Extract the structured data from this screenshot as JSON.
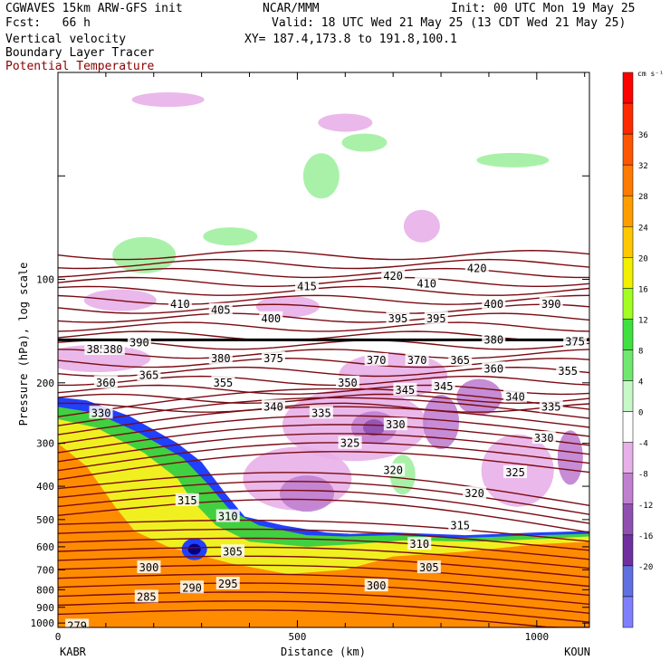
{
  "header": {
    "model": "CGWAVES 15km ARW-GFS init",
    "forecast": "Fcst:   66 h",
    "field1": "Vertical velocity",
    "field2": "Boundary Layer Tracer",
    "field3": "Potential Temperature",
    "center": "NCAR/MMM",
    "init": "Init: 00 UTC Mon 19 May 25",
    "valid": "Valid: 18 UTC Wed 21 May 25 (13 CDT Wed 21 May 25)",
    "xy": "XY= 187.4,173.8 to 191.8,100.1"
  },
  "colors": {
    "theta": "#7a0a12",
    "tracer_orange": "#ff8c00",
    "tracer_yellow": "#f0f020",
    "tracer_green": "#40d040",
    "tracer_blue": "#2040ff",
    "ascent_green": "#a0f0a0",
    "descent_light": "#e8b0e8",
    "descent_mid": "#c080d0",
    "descent_dark": "#9050b0"
  },
  "chart_data": {
    "type": "cross-section",
    "xlabel": "Distance (km)",
    "ylabel": "Pressure (hPa), log scale",
    "x_left_station": "KABR",
    "x_right_station": "KOUN",
    "xlim": [
      0,
      1110
    ],
    "ylim_hpa": [
      1030,
      25
    ],
    "x_ticks": [
      0,
      500,
      1000
    ],
    "y_ticks": [
      100,
      200,
      300,
      400,
      500,
      600,
      700,
      800,
      900,
      1000
    ],
    "y_minor_ticks": [
      50
    ],
    "colorbar": {
      "unit": "cm s⁻¹",
      "labels": [
        36,
        32,
        28,
        24,
        20,
        16,
        12,
        8,
        4,
        0,
        -4,
        -8,
        -12,
        -16,
        -20
      ],
      "bins": [
        {
          "lo": 40,
          "hi": 44,
          "color": "#ff0000"
        },
        {
          "lo": 36,
          "hi": 40,
          "color": "#ff2a00"
        },
        {
          "lo": 32,
          "hi": 36,
          "color": "#ff5500"
        },
        {
          "lo": 28,
          "hi": 32,
          "color": "#ff7a00"
        },
        {
          "lo": 24,
          "hi": 28,
          "color": "#ff9d00"
        },
        {
          "lo": 20,
          "hi": 24,
          "color": "#ffc800"
        },
        {
          "lo": 16,
          "hi": 20,
          "color": "#f0f000"
        },
        {
          "lo": 12,
          "hi": 16,
          "color": "#a0ff20"
        },
        {
          "lo": 8,
          "hi": 12,
          "color": "#40e040"
        },
        {
          "lo": 4,
          "hi": 8,
          "color": "#70e870"
        },
        {
          "lo": 0,
          "hi": 4,
          "color": "#c8f8c8"
        },
        {
          "lo": -4,
          "hi": 0,
          "color": "#ffffff"
        },
        {
          "lo": -8,
          "hi": -4,
          "color": "#e8b0e8"
        },
        {
          "lo": -12,
          "hi": -8,
          "color": "#c080d0"
        },
        {
          "lo": -16,
          "hi": -12,
          "color": "#9050b0"
        },
        {
          "lo": -20,
          "hi": -16,
          "color": "#7030a0"
        },
        {
          "lo": -24,
          "hi": -20,
          "color": "#6070e0"
        },
        {
          "lo": -28,
          "hi": -24,
          "color": "#8080ff"
        }
      ]
    },
    "theta_labels": [
      {
        "text": "415",
        "x": 520,
        "p": 105
      },
      {
        "text": "420",
        "x": 700,
        "p": 98
      },
      {
        "text": "420",
        "x": 875,
        "p": 93
      },
      {
        "text": "410",
        "x": 770,
        "p": 103
      },
      {
        "text": "410",
        "x": 255,
        "p": 118
      },
      {
        "text": "405",
        "x": 340,
        "p": 123
      },
      {
        "text": "400",
        "x": 445,
        "p": 130
      },
      {
        "text": "400",
        "x": 910,
        "p": 118
      },
      {
        "text": "395",
        "x": 710,
        "p": 130
      },
      {
        "text": "395",
        "x": 790,
        "p": 130
      },
      {
        "text": "390",
        "x": 1030,
        "p": 118
      },
      {
        "text": "390",
        "x": 170,
        "p": 153
      },
      {
        "text": "385",
        "x": 80,
        "p": 160
      },
      {
        "text": "380",
        "x": 115,
        "p": 160
      },
      {
        "text": "380",
        "x": 340,
        "p": 170
      },
      {
        "text": "375",
        "x": 450,
        "p": 170
      },
      {
        "text": "380",
        "x": 910,
        "p": 150
      },
      {
        "text": "375",
        "x": 1080,
        "p": 152
      },
      {
        "text": "370",
        "x": 665,
        "p": 172
      },
      {
        "text": "370",
        "x": 750,
        "p": 172
      },
      {
        "text": "365",
        "x": 840,
        "p": 172
      },
      {
        "text": "365",
        "x": 190,
        "p": 190
      },
      {
        "text": "360",
        "x": 100,
        "p": 200
      },
      {
        "text": "360",
        "x": 910,
        "p": 182
      },
      {
        "text": "355",
        "x": 1065,
        "p": 185
      },
      {
        "text": "355",
        "x": 345,
        "p": 200
      },
      {
        "text": "350",
        "x": 605,
        "p": 200
      },
      {
        "text": "345",
        "x": 725,
        "p": 210
      },
      {
        "text": "345",
        "x": 805,
        "p": 205
      },
      {
        "text": "340",
        "x": 450,
        "p": 235
      },
      {
        "text": "340",
        "x": 955,
        "p": 220
      },
      {
        "text": "335",
        "x": 550,
        "p": 245
      },
      {
        "text": "335",
        "x": 1030,
        "p": 235
      },
      {
        "text": "330",
        "x": 90,
        "p": 245
      },
      {
        "text": "330",
        "x": 705,
        "p": 265
      },
      {
        "text": "330",
        "x": 1015,
        "p": 290
      },
      {
        "text": "325",
        "x": 610,
        "p": 300
      },
      {
        "text": "325",
        "x": 955,
        "p": 365
      },
      {
        "text": "320",
        "x": 700,
        "p": 360
      },
      {
        "text": "320",
        "x": 870,
        "p": 420
      },
      {
        "text": "315",
        "x": 270,
        "p": 440
      },
      {
        "text": "315",
        "x": 840,
        "p": 520
      },
      {
        "text": "310",
        "x": 355,
        "p": 490
      },
      {
        "text": "310",
        "x": 755,
        "p": 590
      },
      {
        "text": "305",
        "x": 365,
        "p": 620
      },
      {
        "text": "305",
        "x": 775,
        "p": 690
      },
      {
        "text": "300",
        "x": 190,
        "p": 690
      },
      {
        "text": "300",
        "x": 665,
        "p": 780
      },
      {
        "text": "295",
        "x": 355,
        "p": 770
      },
      {
        "text": "290",
        "x": 280,
        "p": 790
      },
      {
        "text": "285",
        "x": 185,
        "p": 840
      },
      {
        "text": "279",
        "x": 40,
        "p": 1020
      }
    ],
    "tropopause_p": 150
  }
}
